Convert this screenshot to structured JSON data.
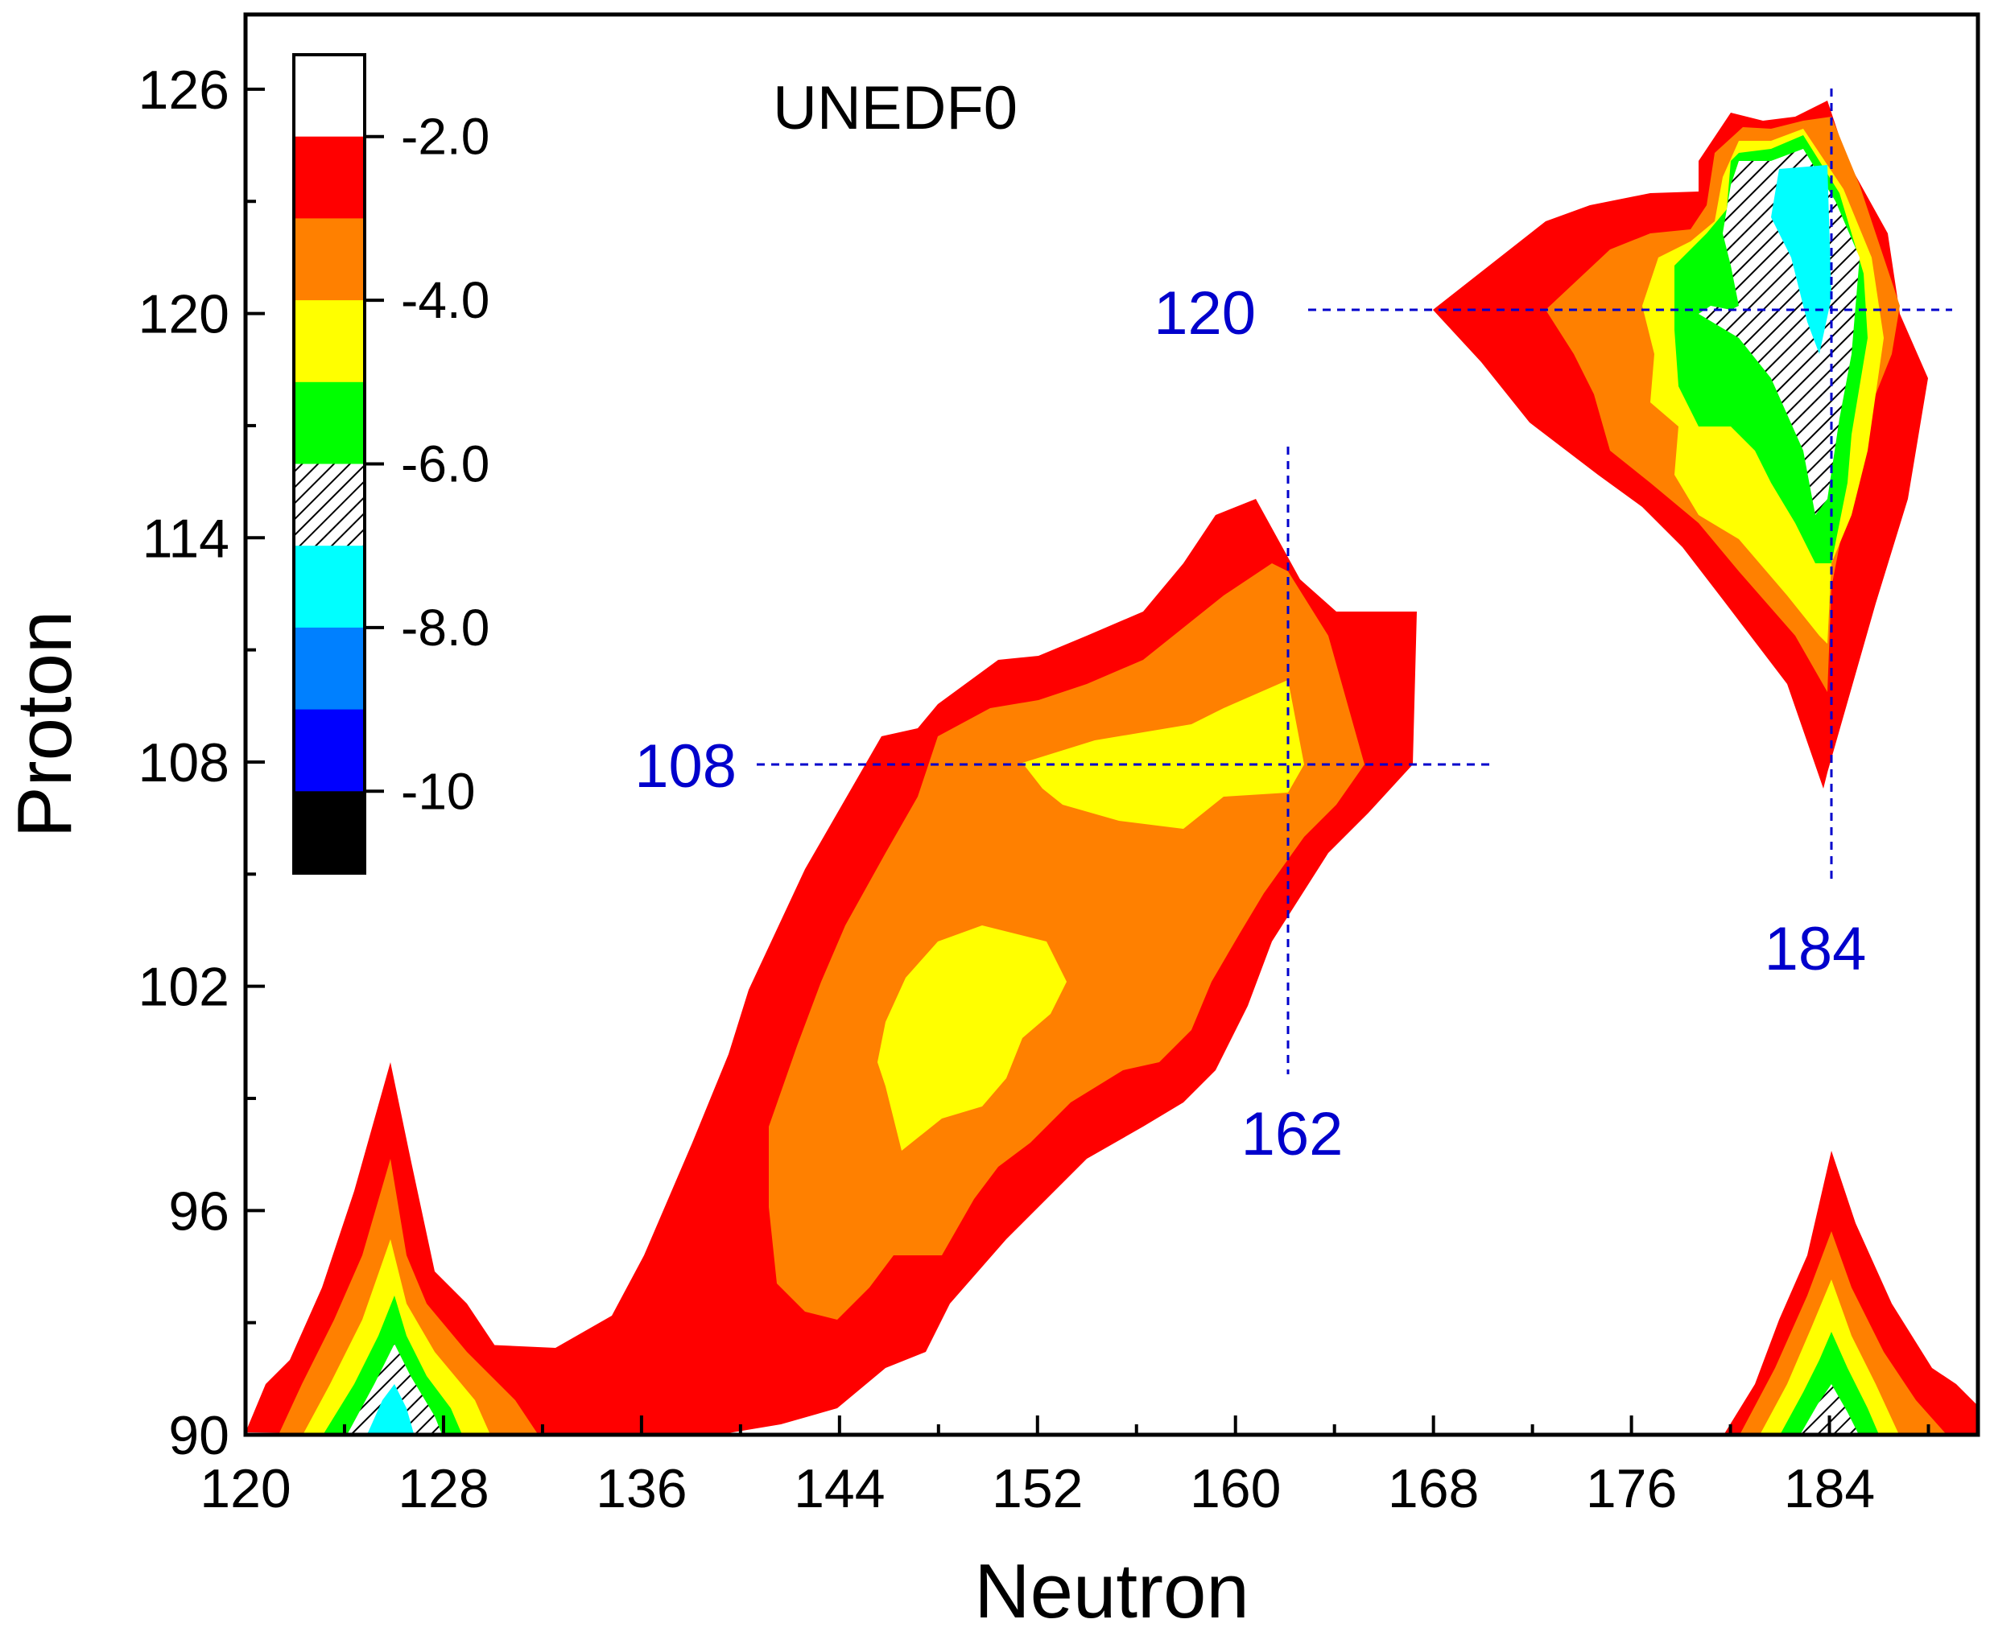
{
  "chart_data": {
    "type": "contour",
    "title": "UNEDF0",
    "xlabel": "Neutron",
    "ylabel": "Proton",
    "xlim": [
      120,
      190
    ],
    "ylim": [
      90,
      128
    ],
    "x_ticks": [
      120,
      128,
      136,
      144,
      152,
      160,
      168,
      176,
      184
    ],
    "y_ticks": [
      90,
      96,
      102,
      108,
      114,
      120,
      126
    ],
    "colorbar": {
      "levels": [
        {
          "color": "#000000"
        },
        {
          "color": "#0000ff"
        },
        {
          "color": "#0080ff"
        },
        {
          "color": "#00ffff"
        },
        {
          "color": "hatched"
        },
        {
          "color": "#00ff00"
        },
        {
          "color": "#ffff00"
        },
        {
          "color": "#ff8000"
        },
        {
          "color": "#ff0000"
        },
        {
          "color": "#ffffff"
        }
      ],
      "labels": [
        "-2.0",
        "-4.0",
        "-6.0",
        "-8.0",
        "-10"
      ]
    },
    "annotations": {
      "n162": "162",
      "z108": "108",
      "n184": "184",
      "z120": "120"
    },
    "guide_lines": {
      "vertical": [
        162,
        184
      ],
      "horizontal": [
        108,
        120
      ]
    },
    "regions": [
      {
        "name": "central-island",
        "centre": [
          153,
          104
        ],
        "min_level": "-4.0"
      },
      {
        "name": "superheavy-island",
        "centre": [
          182,
          118
        ],
        "min_level": "-8.0"
      },
      {
        "name": "lower-left-peak",
        "centre": [
          125,
          92
        ],
        "min_level": "-8.0"
      },
      {
        "name": "lower-right-peak",
        "centre": [
          184,
          92
        ],
        "min_level": "-6.0"
      }
    ]
  }
}
